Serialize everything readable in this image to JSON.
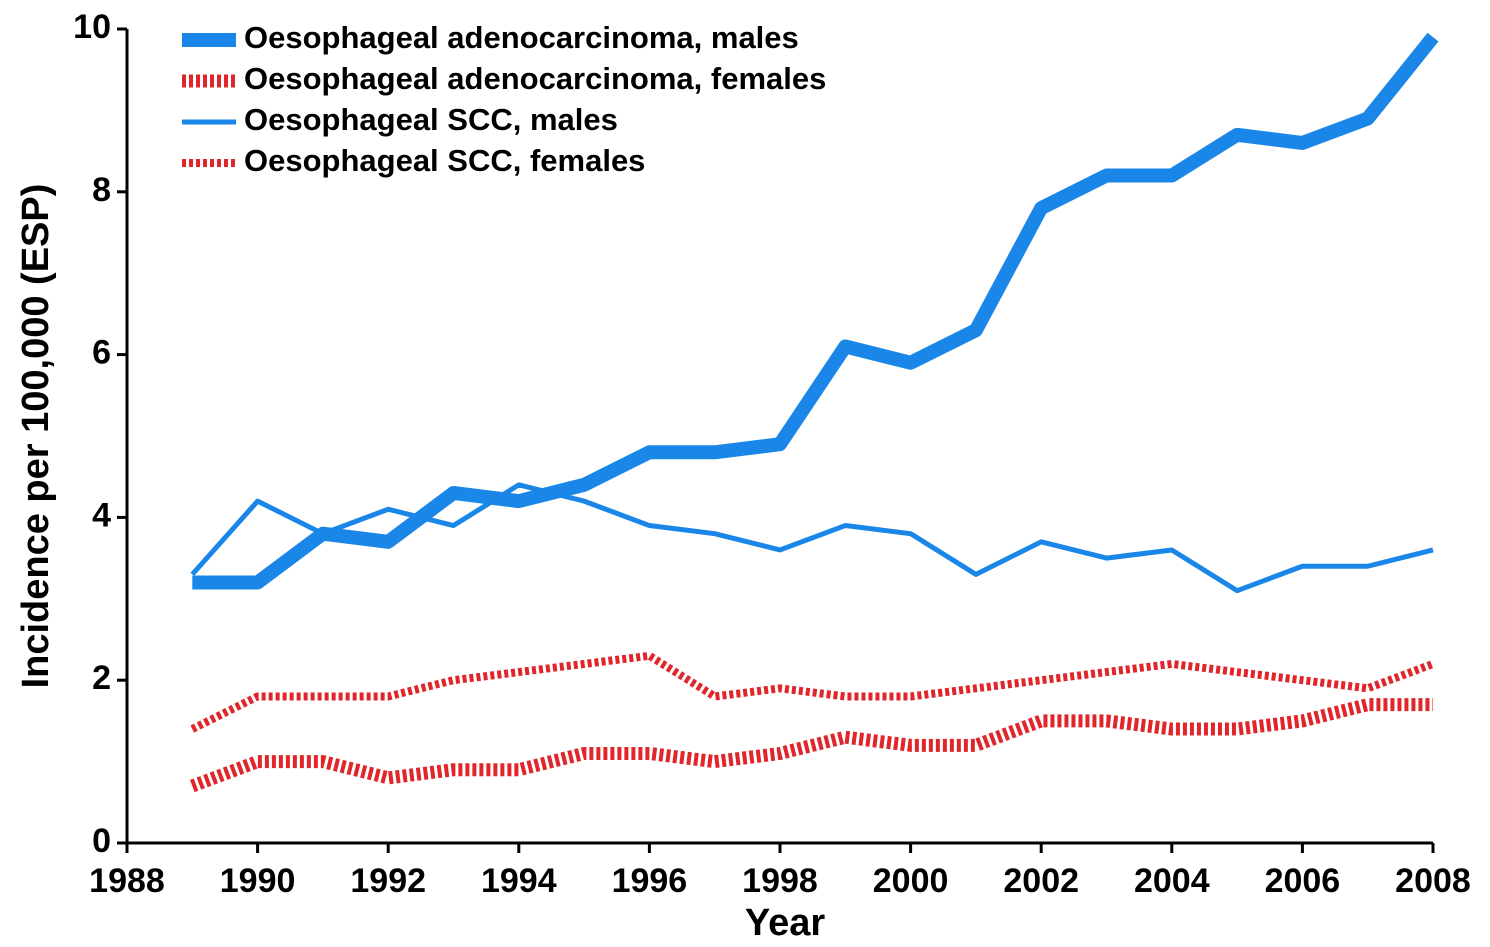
{
  "chart_data": {
    "type": "line",
    "x_label": "Year",
    "y_label": "Incidence per 100,000 (ESP)",
    "x": [
      1989,
      1990,
      1991,
      1992,
      1993,
      1994,
      1995,
      1996,
      1997,
      1998,
      1999,
      2000,
      2001,
      2002,
      2003,
      2004,
      2005,
      2006,
      2007,
      2008
    ],
    "series": [
      {
        "name": "Oesophageal adenocarcinoma, males",
        "color": "#1a87e8",
        "width": 14,
        "dashed": false,
        "values": [
          3.2,
          3.2,
          3.8,
          3.7,
          4.3,
          4.2,
          4.4,
          4.8,
          4.8,
          4.9,
          6.1,
          5.9,
          6.3,
          7.8,
          8.2,
          8.2,
          8.7,
          8.6,
          8.9,
          9.9
        ]
      },
      {
        "name": "Oesophageal adenocarcinoma, females",
        "color": "#e0262a",
        "width": 13,
        "dashed": true,
        "values": [
          0.7,
          1.0,
          1.0,
          0.8,
          0.9,
          0.9,
          1.1,
          1.1,
          1.0,
          1.1,
          1.3,
          1.2,
          1.2,
          1.5,
          1.5,
          1.4,
          1.4,
          1.5,
          1.7,
          1.7
        ]
      },
      {
        "name": "Oesophageal SCC, males",
        "color": "#1a87e8",
        "width": 5,
        "dashed": false,
        "values": [
          3.3,
          4.2,
          3.8,
          4.1,
          3.9,
          4.4,
          4.2,
          3.9,
          3.8,
          3.6,
          3.9,
          3.8,
          3.3,
          3.7,
          3.5,
          3.6,
          3.1,
          3.4,
          3.4,
          3.6
        ]
      },
      {
        "name": "Oesophageal SCC, females",
        "color": "#e0262a",
        "width": 8,
        "dashed": true,
        "values": [
          1.4,
          1.8,
          1.8,
          1.8,
          2.0,
          2.1,
          2.2,
          2.3,
          1.8,
          1.9,
          1.8,
          1.8,
          1.9,
          2.0,
          2.1,
          2.2,
          2.1,
          2.0,
          1.9,
          2.2
        ]
      }
    ],
    "xlim": [
      1988,
      2008
    ],
    "xticks": [
      1988,
      1990,
      1992,
      1994,
      1996,
      1998,
      2000,
      2002,
      2004,
      2006,
      2008
    ],
    "ylim": [
      0,
      10
    ],
    "yticks": [
      0,
      2,
      4,
      6,
      8,
      10
    ],
    "legend": "upper left"
  }
}
